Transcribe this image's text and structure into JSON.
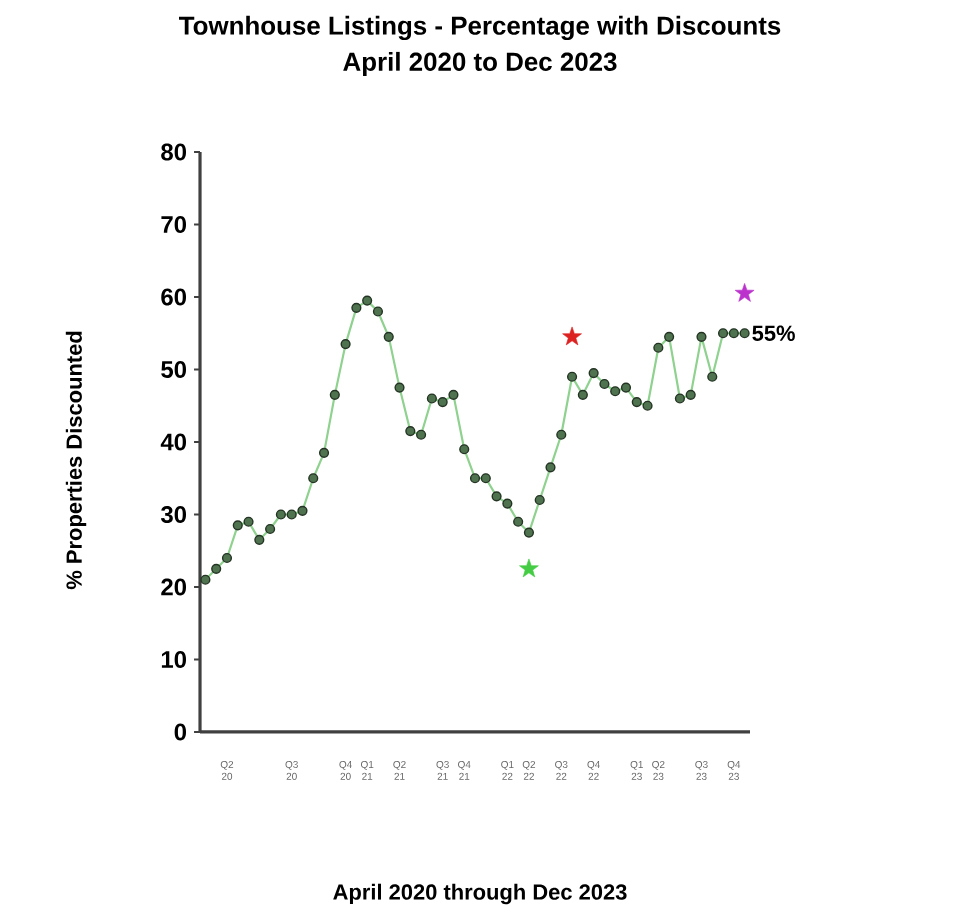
{
  "chart_data": {
    "type": "line",
    "title": "Townhouse Listings - Percentage with Discounts",
    "subtitle": "April 2020 to Dec 2023",
    "xlabel": "April 2020 through Dec 2023",
    "ylabel": "% Properties Discounted",
    "categories": [
      null,
      null,
      "Q2 20",
      null,
      null,
      null,
      null,
      null,
      "Q3 20",
      null,
      null,
      null,
      null,
      "Q4 20",
      null,
      "Q1 21",
      null,
      null,
      "Q2 21",
      null,
      null,
      null,
      "Q3 21",
      null,
      "Q4 21",
      null,
      null,
      null,
      "Q1 22",
      null,
      "Q2 22",
      null,
      null,
      "Q3 22",
      null,
      null,
      "Q4 22",
      null,
      null,
      null,
      "Q1 23",
      null,
      "Q2 23",
      null,
      null,
      null,
      "Q3 23",
      null,
      null,
      "Q4 23",
      null
    ],
    "series": [
      {
        "color": "#8fd18f",
        "marker": "circle",
        "values": [
          21,
          22.5,
          24,
          28.5,
          29,
          26.5,
          28,
          30,
          30,
          30.5,
          35,
          38.5,
          46.5,
          53.5,
          58.5,
          59.5,
          58,
          54.5,
          47.5,
          41.5,
          41,
          46,
          45.5,
          46.5,
          39,
          35,
          35,
          32.5,
          31.5,
          29,
          27.5,
          32,
          36.5,
          41,
          49,
          46.5,
          49.5,
          48,
          47,
          47.5,
          45.5,
          45,
          53,
          54.5,
          46,
          46.5,
          54.5,
          49,
          55,
          55,
          55
        ]
      },
      {
        "type": "scatter",
        "color": "#44cc44",
        "marker": "star",
        "values": [
          null,
          null,
          null,
          null,
          null,
          null,
          null,
          null,
          null,
          null,
          null,
          null,
          null,
          null,
          null,
          null,
          null,
          null,
          null,
          null,
          null,
          null,
          null,
          null,
          null,
          null,
          null,
          null,
          null,
          null,
          22.5,
          null,
          null,
          null,
          null,
          null,
          null,
          null,
          null,
          null,
          null,
          null,
          null,
          null,
          null,
          null,
          null,
          null,
          null,
          null,
          null
        ]
      },
      {
        "type": "scatter",
        "color": "#dd2222",
        "marker": "star",
        "values": [
          null,
          null,
          null,
          null,
          null,
          null,
          null,
          null,
          null,
          null,
          null,
          null,
          null,
          null,
          null,
          null,
          null,
          null,
          null,
          null,
          null,
          null,
          null,
          null,
          null,
          null,
          null,
          null,
          null,
          null,
          null,
          null,
          null,
          null,
          54.5,
          null,
          null,
          null,
          null,
          null,
          null,
          null,
          null,
          null,
          null,
          null,
          null,
          null,
          null,
          null,
          null
        ]
      },
      {
        "type": "scatter",
        "color": "#bb33cc",
        "marker": "star",
        "values": [
          null,
          null,
          null,
          null,
          null,
          null,
          null,
          null,
          null,
          null,
          null,
          null,
          null,
          null,
          null,
          null,
          null,
          null,
          null,
          null,
          null,
          null,
          null,
          null,
          null,
          null,
          null,
          null,
          null,
          null,
          null,
          null,
          null,
          null,
          null,
          null,
          null,
          null,
          null,
          null,
          null,
          null,
          null,
          null,
          null,
          null,
          null,
          null,
          null,
          null,
          60.5
        ]
      }
    ],
    "ylim": [
      0,
      80
    ],
    "yticks": [
      0,
      10,
      20,
      30,
      40,
      50,
      60,
      70,
      80
    ],
    "annotations": [
      "55%"
    ]
  }
}
